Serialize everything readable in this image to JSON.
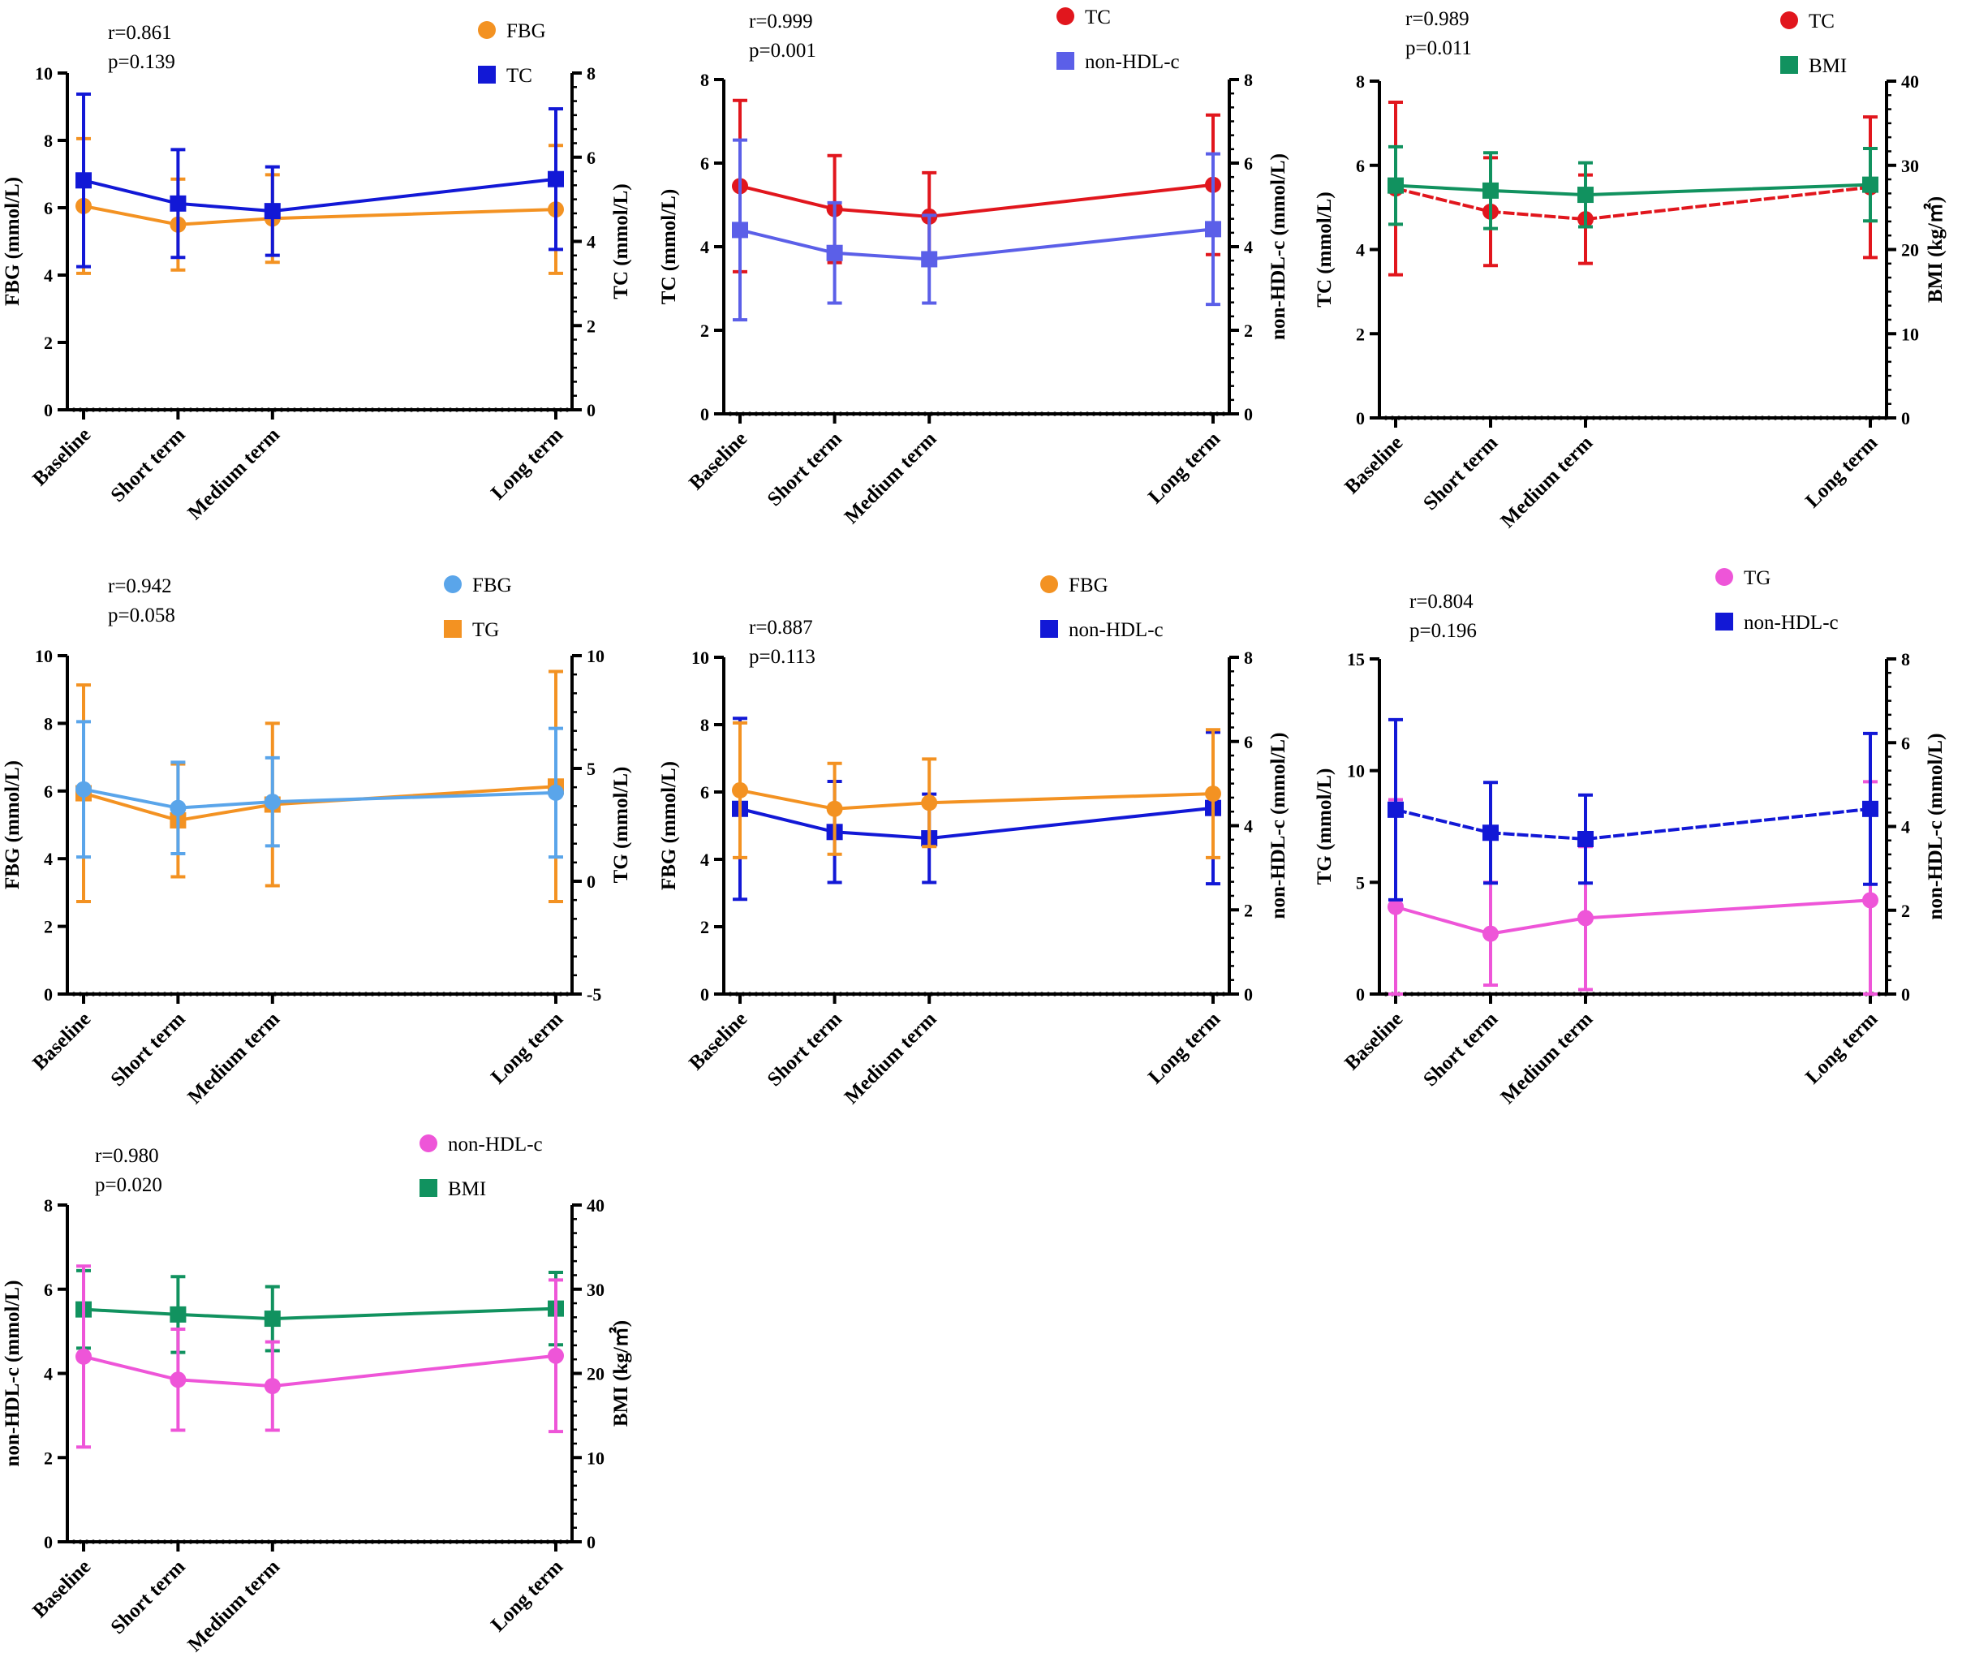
{
  "figure": {
    "description_note": "Seven dual-axis line charts with error bars",
    "xlabels": [
      "Baseline",
      "Short term",
      "Medium term",
      "Long term"
    ],
    "x_positions": [
      0,
      1,
      2,
      5
    ]
  },
  "chart_data": [
    {
      "type": "line",
      "r_text": "r=0.861",
      "p_text": "p=0.139",
      "left": {
        "label": "FBG (mmol/L)",
        "range": [
          0,
          10
        ],
        "ticks": [
          "0",
          "2",
          "4",
          "6",
          "8",
          "10"
        ],
        "tickvals": [
          0,
          2,
          4,
          6,
          8,
          10
        ]
      },
      "right": {
        "label": "TC (mmol/L)",
        "range": [
          0,
          8
        ],
        "ticks": [
          "0",
          "2",
          "4",
          "6",
          "8"
        ],
        "tickvals": [
          0,
          2,
          4,
          6,
          8
        ]
      },
      "series": [
        {
          "name": "FBG",
          "axis": "left",
          "color": "#F39222",
          "marker": "circle",
          "values": [
            6.05,
            5.5,
            5.68,
            5.95
          ],
          "err": [
            2.0,
            1.35,
            1.3,
            1.9
          ]
        },
        {
          "name": "TC",
          "axis": "right",
          "color": "#1218D6",
          "marker": "square",
          "values": [
            5.45,
            4.9,
            4.72,
            5.48
          ],
          "err": [
            2.05,
            1.28,
            1.05,
            1.67
          ]
        }
      ],
      "legend": [
        {
          "name": "FBG",
          "color": "#F39222",
          "marker": "circle"
        },
        {
          "name": "TC",
          "color": "#1218D6",
          "marker": "square"
        }
      ]
    },
    {
      "type": "line",
      "r_text": "r=0.999",
      "p_text": "p=0.001",
      "left": {
        "label": "TC (mmol/L)",
        "range": [
          0,
          8
        ],
        "ticks": [
          "0",
          "2",
          "4",
          "6",
          "8"
        ],
        "tickvals": [
          0,
          2,
          4,
          6,
          8
        ]
      },
      "right": {
        "label": "non-HDL-c (mmol/L)",
        "range": [
          0,
          8
        ],
        "ticks": [
          "0",
          "2",
          "4",
          "6",
          "8"
        ],
        "tickvals": [
          0,
          2,
          4,
          6,
          8
        ]
      },
      "series": [
        {
          "name": "TC",
          "axis": "left",
          "color": "#E1161D",
          "marker": "circle",
          "values": [
            5.45,
            4.9,
            4.72,
            5.48
          ],
          "err": [
            2.05,
            1.28,
            1.05,
            1.67
          ]
        },
        {
          "name": "non-HDL-c",
          "axis": "right",
          "color": "#5B5FE8",
          "marker": "square",
          "values": [
            4.4,
            3.85,
            3.7,
            4.42
          ],
          "err": [
            2.15,
            1.2,
            1.05,
            1.8
          ]
        }
      ],
      "legend": [
        {
          "name": "TC",
          "color": "#E1161D",
          "marker": "circle"
        },
        {
          "name": "non-HDL-c",
          "color": "#5B5FE8",
          "marker": "square"
        }
      ]
    },
    {
      "type": "line",
      "r_text": "r=0.989",
      "p_text": "p=0.011",
      "left": {
        "label": "TC (mmol/L)",
        "range": [
          0,
          8
        ],
        "ticks": [
          "0",
          "2",
          "4",
          "6",
          "8"
        ],
        "tickvals": [
          0,
          2,
          4,
          6,
          8
        ]
      },
      "right": {
        "label": "BMI (kg/㎡)",
        "range": [
          0,
          40
        ],
        "ticks": [
          "0",
          "10",
          "20",
          "30",
          "40"
        ],
        "tickvals": [
          0,
          10,
          20,
          30,
          40
        ]
      },
      "series": [
        {
          "name": "TC",
          "axis": "left",
          "color": "#E1161D",
          "marker": "circle",
          "dashed": true,
          "values": [
            5.45,
            4.9,
            4.72,
            5.48
          ],
          "err": [
            2.05,
            1.28,
            1.05,
            1.67
          ]
        },
        {
          "name": "BMI",
          "axis": "right",
          "color": "#11925F",
          "marker": "square",
          "values": [
            27.6,
            27.0,
            26.5,
            27.7
          ],
          "err": [
            4.6,
            4.5,
            3.8,
            4.3
          ]
        }
      ],
      "legend": [
        {
          "name": "TC",
          "color": "#E1161D",
          "marker": "circle"
        },
        {
          "name": "BMI",
          "color": "#11925F",
          "marker": "square"
        }
      ]
    },
    {
      "type": "line",
      "r_text": "r=0.942",
      "p_text": "p=0.058",
      "left": {
        "label": "FBG (mmol/L)",
        "range": [
          0,
          10
        ],
        "ticks": [
          "0",
          "2",
          "4",
          "6",
          "8",
          "10"
        ],
        "tickvals": [
          0,
          2,
          4,
          6,
          8,
          10
        ]
      },
      "right": {
        "label": "TG (mmol/L)",
        "range": [
          -5,
          10
        ],
        "ticks": [
          "-5",
          "0",
          "5",
          "10"
        ],
        "tickvals": [
          -5,
          0,
          5,
          10
        ]
      },
      "series": [
        {
          "name": "TG",
          "axis": "right",
          "color": "#F39222",
          "marker": "square",
          "values": [
            3.9,
            2.7,
            3.4,
            4.2
          ],
          "err": [
            4.8,
            2.5,
            3.6,
            5.1
          ]
        },
        {
          "name": "FBG",
          "axis": "left",
          "color": "#5AA5EA",
          "marker": "circle",
          "values": [
            6.05,
            5.5,
            5.68,
            5.95
          ],
          "err": [
            2.0,
            1.35,
            1.3,
            1.9
          ]
        }
      ],
      "legend": [
        {
          "name": "FBG",
          "color": "#5AA5EA",
          "marker": "circle"
        },
        {
          "name": "TG",
          "color": "#F39222",
          "marker": "square"
        }
      ]
    },
    {
      "type": "line",
      "r_text": "r=0.887",
      "p_text": "p=0.113",
      "left": {
        "label": "FBG (mmol/L)",
        "range": [
          0,
          10
        ],
        "ticks": [
          "0",
          "2",
          "4",
          "6",
          "8",
          "10"
        ],
        "tickvals": [
          0,
          2,
          4,
          6,
          8,
          10
        ]
      },
      "right": {
        "label": "non-HDL-c (mmol/L)",
        "range": [
          0,
          8
        ],
        "ticks": [
          "0",
          "2",
          "4",
          "6",
          "8"
        ],
        "tickvals": [
          0,
          2,
          4,
          6,
          8
        ]
      },
      "series": [
        {
          "name": "non-HDL-c",
          "axis": "right",
          "color": "#1218D6",
          "marker": "square",
          "values": [
            4.4,
            3.85,
            3.7,
            4.42
          ],
          "err": [
            2.15,
            1.2,
            1.05,
            1.8
          ]
        },
        {
          "name": "FBG",
          "axis": "left",
          "color": "#F39222",
          "marker": "circle",
          "values": [
            6.05,
            5.5,
            5.68,
            5.95
          ],
          "err": [
            2.0,
            1.35,
            1.3,
            1.9
          ]
        }
      ],
      "legend": [
        {
          "name": "FBG",
          "color": "#F39222",
          "marker": "circle"
        },
        {
          "name": "non-HDL-c",
          "color": "#1218D6",
          "marker": "square"
        }
      ]
    },
    {
      "type": "line",
      "r_text": "r=0.804",
      "p_text": "p=0.196",
      "left": {
        "label": "TG (mmol/L)",
        "range": [
          0,
          15
        ],
        "ticks": [
          "0",
          "5",
          "10",
          "15"
        ],
        "tickvals": [
          0,
          5,
          10,
          15
        ]
      },
      "right": {
        "label": "non-HDL-c (mmol/L)",
        "range": [
          0,
          8
        ],
        "ticks": [
          "0",
          "2",
          "4",
          "6",
          "8"
        ],
        "tickvals": [
          0,
          2,
          4,
          6,
          8
        ]
      },
      "series": [
        {
          "name": "TG",
          "axis": "left",
          "color": "#EE55D8",
          "marker": "circle",
          "values": [
            3.9,
            2.7,
            3.4,
            4.2
          ],
          "err": [
            4.8,
            2.3,
            3.2,
            5.3
          ]
        },
        {
          "name": "non-HDL-c",
          "axis": "right",
          "color": "#1218D6",
          "marker": "square",
          "dashed": true,
          "values": [
            4.4,
            3.85,
            3.7,
            4.42
          ],
          "err": [
            2.15,
            1.2,
            1.05,
            1.8
          ]
        }
      ],
      "legend": [
        {
          "name": "TG",
          "color": "#EE55D8",
          "marker": "circle"
        },
        {
          "name": "non-HDL-c",
          "color": "#1218D6",
          "marker": "square"
        }
      ]
    },
    {
      "type": "line",
      "r_text": "r=0.980",
      "p_text": "p=0.020",
      "left": {
        "label": "non-HDL-c (mmol/L)",
        "range": [
          0,
          8
        ],
        "ticks": [
          "0",
          "2",
          "4",
          "6",
          "8"
        ],
        "tickvals": [
          0,
          2,
          4,
          6,
          8
        ]
      },
      "right": {
        "label": "BMI (kg/㎡)",
        "range": [
          0,
          40
        ],
        "ticks": [
          "0",
          "10",
          "20",
          "30",
          "40"
        ],
        "tickvals": [
          0,
          10,
          20,
          30,
          40
        ]
      },
      "series": [
        {
          "name": "BMI",
          "axis": "right",
          "color": "#11925F",
          "marker": "square",
          "values": [
            27.6,
            27.0,
            26.5,
            27.7
          ],
          "err": [
            4.6,
            4.5,
            3.8,
            4.3
          ]
        },
        {
          "name": "non-HDL-c",
          "axis": "left",
          "color": "#EE55D8",
          "marker": "circle",
          "values": [
            4.4,
            3.85,
            3.7,
            4.42
          ],
          "err": [
            2.15,
            1.2,
            1.05,
            1.8
          ]
        }
      ],
      "legend": [
        {
          "name": "non-HDL-c",
          "color": "#EE55D8",
          "marker": "circle"
        },
        {
          "name": "BMI",
          "color": "#11925F",
          "marker": "square"
        }
      ]
    }
  ]
}
